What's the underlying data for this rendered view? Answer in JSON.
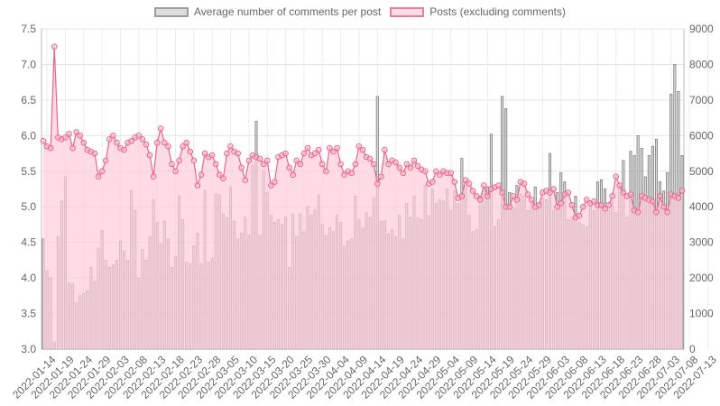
{
  "chart_data": {
    "type": "bar+line",
    "legend": [
      {
        "label": "Average number of comments per post",
        "fill": "#dcdcdc",
        "border": "#9e9e9e"
      },
      {
        "label": "Posts (excluding comments)",
        "fill": "#ffdde5",
        "border": "#f07c99"
      }
    ],
    "x_labels": [
      "2022-01-14",
      "2022-01-19",
      "2022-01-24",
      "2022-01-29",
      "2022-02-03",
      "2022-02-08",
      "2022-02-13",
      "2022-02-18",
      "2022-02-23",
      "2022-02-28",
      "2022-03-05",
      "2022-03-10",
      "2022-03-15",
      "2022-03-20",
      "2022-03-25",
      "2022-03-30",
      "2022-04-04",
      "2022-04-09",
      "2022-04-14",
      "2022-04-19",
      "2022-04-24",
      "2022-04-29",
      "2022-05-04",
      "2022-05-09",
      "2022-05-14",
      "2022-05-19",
      "2022-05-24",
      "2022-05-29",
      "2022-06-03",
      "2022-06-08",
      "2022-06-13",
      "2022-06-18",
      "2022-06-23",
      "2022-06-28",
      "2022-07-03",
      "2022-07-08",
      "2022-07-13"
    ],
    "x_start": "2022-01-13",
    "y_left": {
      "min": 3.0,
      "max": 7.5,
      "ticks": [
        "3.0",
        "3.5",
        "4.0",
        "4.5",
        "5.0",
        "5.5",
        "6.0",
        "6.5",
        "7.0",
        "7.5"
      ]
    },
    "y_right": {
      "min": 0,
      "max": 9000,
      "ticks": [
        "0",
        "1000",
        "2000",
        "3000",
        "4000",
        "5000",
        "6000",
        "7000",
        "8000",
        "9000"
      ]
    },
    "series": [
      {
        "name": "Average number of comments per post",
        "type": "bar",
        "axis": "left",
        "values": [
          4.55,
          4.1,
          4.0,
          3.1,
          4.58,
          5.08,
          5.42,
          3.93,
          3.92,
          3.65,
          3.75,
          3.78,
          3.82,
          4.15,
          3.95,
          4.42,
          4.67,
          4.25,
          4.15,
          4.18,
          4.25,
          4.52,
          4.38,
          4.25,
          5.23,
          4.95,
          4.0,
          4.4,
          4.25,
          4.58,
          5.1,
          4.78,
          4.48,
          4.8,
          4.55,
          4.15,
          4.3,
          5.15,
          4.82,
          4.22,
          4.2,
          4.45,
          4.63,
          4.2,
          5.23,
          4.22,
          4.28,
          5.18,
          5.17,
          4.9,
          4.85,
          5.28,
          4.8,
          4.55,
          4.63,
          4.85,
          4.6,
          5.58,
          6.2,
          4.6,
          5.5,
          5.2,
          4.88,
          4.78,
          4.82,
          4.75,
          4.85,
          4.15,
          4.9,
          4.58,
          4.9,
          4.65,
          5.0,
          4.88,
          4.95,
          5.17,
          4.75,
          4.6,
          4.7,
          4.65,
          4.88,
          4.78,
          4.45,
          4.52,
          4.55,
          5.15,
          4.82,
          4.7,
          4.92,
          4.85,
          5.12,
          6.55,
          4.8,
          4.8,
          4.62,
          4.68,
          4.58,
          4.88,
          4.55,
          5.05,
          4.85,
          5.15,
          4.85,
          4.82,
          5.3,
          4.88,
          5.25,
          5.05,
          5.1,
          5.08,
          5.25,
          4.95,
          5.22,
          5.05,
          5.68,
          5.3,
          4.88,
          4.65,
          4.68,
          5.15,
          5.22,
          5.28,
          6.02,
          4.72,
          4.82,
          6.55,
          6.38,
          5.2,
          4.98,
          5.3,
          5.18,
          5.15,
          4.95,
          5.05,
          5.28,
          4.98,
          5.12,
          5.1,
          5.75,
          4.95,
          5.2,
          5.48,
          5.35,
          4.82,
          4.85,
          5.15,
          4.78,
          4.75,
          4.72,
          5.08,
          4.95,
          5.35,
          5.38,
          5.25,
          4.95,
          5.08,
          4.92,
          5.3,
          5.65,
          4.85,
          5.78,
          5.72,
          6.0,
          5.82,
          5.42,
          5.72,
          5.85,
          5.95,
          5.35,
          5.22,
          5.48,
          6.58,
          7.0,
          6.62,
          5.72
        ]
      },
      {
        "name": "Posts (excluding comments)",
        "type": "line",
        "axis": "right",
        "values": [
          5850,
          5700,
          5650,
          8500,
          5950,
          5900,
          5950,
          6050,
          5650,
          6100,
          6000,
          5800,
          5600,
          5550,
          5500,
          4850,
          5000,
          5300,
          5900,
          6000,
          5800,
          5650,
          5600,
          5800,
          5850,
          5950,
          6000,
          5900,
          5750,
          5450,
          4850,
          5800,
          6200,
          5800,
          5700,
          5200,
          5000,
          5300,
          5700,
          5800,
          5550,
          5300,
          4600,
          4900,
          5500,
          5400,
          5450,
          5200,
          4900,
          4800,
          5500,
          5700,
          5550,
          5500,
          5100,
          4750,
          5300,
          5450,
          5400,
          5350,
          5200,
          5300,
          4600,
          4700,
          5400,
          5450,
          5500,
          5100,
          4900,
          5300,
          5200,
          5500,
          5650,
          5450,
          5500,
          5600,
          5200,
          5000,
          5650,
          5550,
          5650,
          5200,
          4900,
          5000,
          4950,
          5200,
          5700,
          5600,
          5400,
          5350,
          5200,
          4650,
          4850,
          5600,
          5200,
          5300,
          5250,
          5100,
          4950,
          5200,
          5100,
          5300,
          5150,
          5050,
          5000,
          4650,
          4700,
          5000,
          4900,
          5000,
          4950,
          4950,
          4700,
          4250,
          4300,
          4750,
          4650,
          4450,
          4300,
          4200,
          4600,
          4300,
          4500,
          4550,
          4600,
          4400,
          4000,
          4000,
          4300,
          4200,
          4700,
          4650,
          4350,
          4200,
          4000,
          4050,
          4400,
          4450,
          4400,
          4500,
          4000,
          4100,
          4350,
          4400,
          4050,
          3700,
          3750,
          4000,
          4200,
          4100,
          4150,
          4050,
          4050,
          3950,
          4050,
          4300,
          4850,
          4600,
          4400,
          4300,
          4350,
          3900,
          3850,
          4300,
          4250,
          4200,
          4150,
          3850,
          4300,
          4000,
          3850,
          4350,
          4300,
          4250,
          4450
        ]
      }
    ],
    "grid": true
  }
}
